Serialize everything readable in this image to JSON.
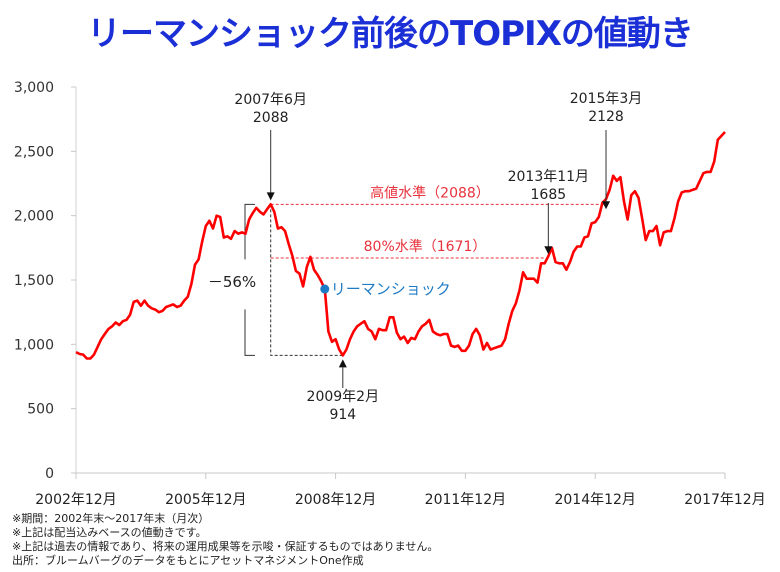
{
  "title": "リーマンショック前後のTOPIXの値動き",
  "chart_data": {
    "type": "line",
    "title": "リーマンショック前後のTOPIXの値動き",
    "x_start": "2002-12",
    "x_end": "2017-12",
    "frequency": "monthly",
    "ylim": [
      0,
      3000
    ],
    "yticks": [
      0,
      500,
      1000,
      1500,
      2000,
      2500,
      3000
    ],
    "ytick_labels": [
      "0",
      "500",
      "1,000",
      "1,500",
      "2,000",
      "2,500",
      "3,000"
    ],
    "xticks": [
      "2002-12",
      "2005-12",
      "2008-12",
      "2011-12",
      "2014-12",
      "2017-12"
    ],
    "xtick_labels": [
      "2002年12月",
      "2005年12月",
      "2008年12月",
      "2011年12月",
      "2014年12月",
      "2017年12月"
    ],
    "grid": false,
    "line_color": "#ff0000",
    "values": [
      940,
      925,
      920,
      890,
      890,
      920,
      980,
      1040,
      1080,
      1120,
      1140,
      1170,
      1150,
      1180,
      1190,
      1230,
      1330,
      1340,
      1300,
      1340,
      1300,
      1280,
      1270,
      1250,
      1260,
      1290,
      1300,
      1310,
      1290,
      1300,
      1340,
      1370,
      1470,
      1620,
      1660,
      1800,
      1920,
      1960,
      1900,
      2000,
      1990,
      1830,
      1840,
      1820,
      1880,
      1860,
      1870,
      1860,
      1970,
      2020,
      2060,
      2030,
      2010,
      2050,
      2088,
      2030,
      1900,
      1910,
      1880,
      1780,
      1690,
      1570,
      1550,
      1450,
      1600,
      1680,
      1580,
      1540,
      1490,
      1430,
      1100,
      1020,
      1040,
      960,
      914,
      960,
      1040,
      1100,
      1140,
      1160,
      1180,
      1120,
      1100,
      1040,
      1120,
      1110,
      1110,
      1210,
      1210,
      1090,
      1040,
      1060,
      1010,
      1050,
      1040,
      1100,
      1140,
      1160,
      1190,
      1100,
      1080,
      1070,
      1080,
      1080,
      990,
      980,
      990,
      950,
      950,
      990,
      1080,
      1120,
      1070,
      960,
      1010,
      960,
      970,
      980,
      990,
      1040,
      1160,
      1260,
      1320,
      1420,
      1560,
      1510,
      1510,
      1510,
      1480,
      1630,
      1630,
      1685,
      1750,
      1640,
      1630,
      1630,
      1580,
      1640,
      1720,
      1760,
      1760,
      1830,
      1840,
      1940,
      1950,
      1990,
      2100,
      2128,
      2200,
      2310,
      2270,
      2300,
      2110,
      1970,
      2160,
      2190,
      2140,
      1980,
      1810,
      1880,
      1880,
      1920,
      1770,
      1870,
      1880,
      1880,
      1980,
      2110,
      2180,
      2190,
      2190,
      2200,
      2210,
      2270,
      2330,
      2340,
      2340,
      2420,
      2590,
      2620,
      2650
    ],
    "annotations": {
      "peak": {
        "date": "2007-06",
        "value": 2088,
        "label1": "2007年6月",
        "label2": "2088"
      },
      "trough": {
        "date": "2009-02",
        "value": 914,
        "label1": "2009年2月",
        "label2": "914"
      },
      "recover80": {
        "date": "2013-11",
        "value": 1685,
        "label1": "2013年11月",
        "label2": "1685"
      },
      "recover100": {
        "date": "2015-03",
        "value": 2128,
        "label1": "2015年3月",
        "label2": "2128"
      },
      "high_level": {
        "value": 2088,
        "label": "高値水準（2088）",
        "color": "#e8323c"
      },
      "level80": {
        "value": 1671,
        "label": "80%水準（1671）",
        "color": "#e8323c"
      },
      "drawdown": {
        "label": "－56%"
      },
      "lehman": {
        "date": "2008-09",
        "value": 1430,
        "label": "リーマンショック",
        "color": "#1f7bc4"
      }
    }
  },
  "notes": [
    "※期間：2002年末～2017年末（月次）",
    "※上記は配当込みベースの値動きです。",
    "※上記は過去の情報であり、将来の運用成果等を示唆・保証するものではありません。",
    "出所：ブルームバーグのデータをもとにアセットマネジメントOne作成"
  ]
}
